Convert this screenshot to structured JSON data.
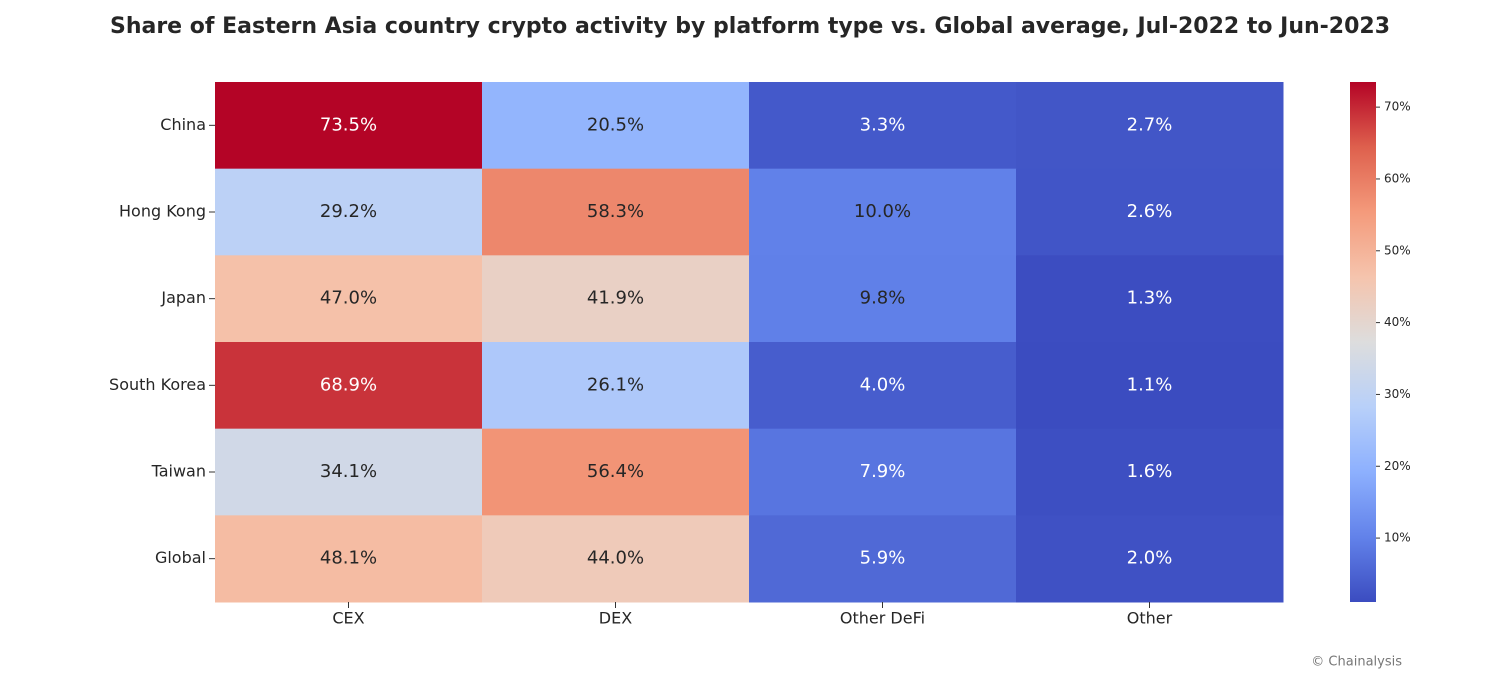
{
  "chart_data": {
    "type": "heatmap",
    "title": "Share of Eastern Asia country crypto activity by platform type vs. Global average, Jul-2022 to Jun-2023",
    "rows": [
      "China",
      "Hong Kong",
      "Japan",
      "South Korea",
      "Taiwan",
      "Global"
    ],
    "columns": [
      "CEX",
      "DEX",
      "Other DeFi",
      "Other"
    ],
    "values": [
      [
        73.5,
        20.5,
        3.3,
        2.7
      ],
      [
        29.2,
        58.3,
        10.0,
        2.6
      ],
      [
        47.0,
        41.9,
        9.8,
        1.3
      ],
      [
        68.9,
        26.1,
        4.0,
        1.1
      ],
      [
        34.1,
        56.4,
        7.9,
        1.6
      ],
      [
        48.1,
        44.0,
        5.9,
        2.0
      ]
    ],
    "value_labels": [
      [
        "73.5%",
        "20.5%",
        "3.3%",
        "2.7%"
      ],
      [
        "29.2%",
        "58.3%",
        "10.0%",
        "2.6%"
      ],
      [
        "47.0%",
        "41.9%",
        "9.8%",
        "1.3%"
      ],
      [
        "68.9%",
        "26.1%",
        "4.0%",
        "1.1%"
      ],
      [
        "34.1%",
        "56.4%",
        "7.9%",
        "1.6%"
      ],
      [
        "48.1%",
        "44.0%",
        "5.9%",
        "2.0%"
      ]
    ],
    "colormap": "coolwarm",
    "clim": [
      1.1,
      73.5
    ],
    "cticks": [
      {
        "value": 10,
        "label": "10%"
      },
      {
        "value": 20,
        "label": "20%"
      },
      {
        "value": 30,
        "label": "30%"
      },
      {
        "value": 40,
        "label": "40%"
      },
      {
        "value": 50,
        "label": "50%"
      },
      {
        "value": 60,
        "label": "60%"
      },
      {
        "value": 70,
        "label": "70%"
      }
    ],
    "credit": "© Chainalysis"
  }
}
